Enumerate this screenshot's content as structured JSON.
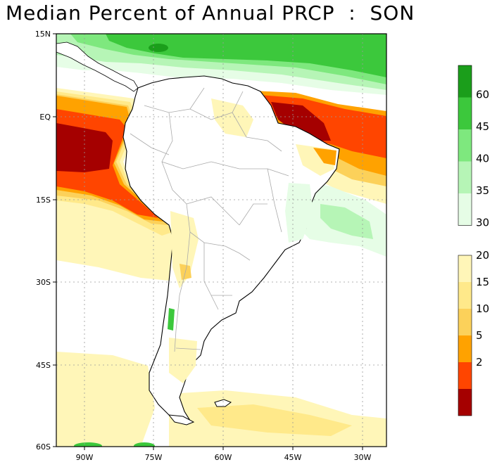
{
  "title": "Median Percent of Annual PRCP  :  SON",
  "map": {
    "lat_labels": [
      "15N",
      "EQ",
      "15S",
      "30S",
      "45S",
      "60S"
    ],
    "lon_labels": [
      "90W",
      "75W",
      "60W",
      "45W",
      "30W"
    ]
  },
  "colorbar": {
    "upper": {
      "labels": [
        "60",
        "45",
        "40",
        "35",
        "30"
      ],
      "colors": [
        "#1b9e1b",
        "#3cc83c",
        "#7ee87e",
        "#b6f5b6",
        "#e6fde6"
      ]
    },
    "lower": {
      "labels": [
        "20",
        "15",
        "10",
        "5",
        "2"
      ],
      "colors": [
        "#fff6b8",
        "#ffe98a",
        "#fcd15a",
        "#ffa200",
        "#ff4500",
        "#a50000"
      ]
    }
  },
  "colors": {
    "land": "#ffffff",
    "ocean_pale": "#fff6b8",
    "border": "#aaaaaa",
    "coast": "#000000",
    "grid": "#9a9a9a"
  }
}
